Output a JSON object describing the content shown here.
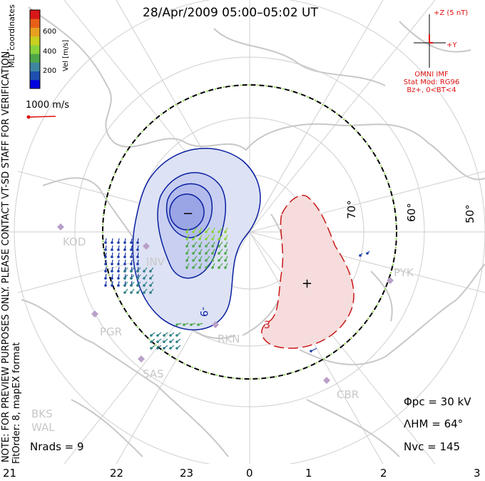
{
  "title": "28/Apr/2009 05:00–05:02 UT",
  "side_note": "NOTE: FOR PREVIEW PURPOSES ONLY. PLEASE CONTACT VT-SD STAFF FOR VERIFICATION.",
  "fit_order": "FitOrder: 8, mapEX format",
  "coords": "MLT coordinates",
  "colorbar": {
    "label": "Vel [m/s]",
    "ticks": [
      "600",
      "400",
      "200"
    ],
    "colors": [
      "#0000e0",
      "#1e4fb0",
      "#3f86a0",
      "#4fa64a",
      "#8ad23a",
      "#c8d020",
      "#e8a020",
      "#e86018",
      "#d81818"
    ]
  },
  "ref_vector": "1000 m/s",
  "imf": {
    "z_label": "+Z (5 nT)",
    "y_label": "+Y",
    "source": "OMNI IMF",
    "model": "Stat Mod: RG96",
    "condition": "Bz+, 0<BT<4"
  },
  "latitude_labels": [
    "70°",
    "60°",
    "50°"
  ],
  "stations": [
    "KOD",
    "INV",
    "PGR",
    "RKN",
    "SAS",
    "PYK",
    "CBR",
    "BKS",
    "WAL"
  ],
  "potential_markers": {
    "negative": "−",
    "positive": "+",
    "contour_label_neg": "-9",
    "contour_label_pos": "3"
  },
  "stats": {
    "phi_pc": "Φpc = 30 kV",
    "lambda_hm": "ΛHM = 64°",
    "n_vc": "Nvc = 145",
    "n_rads": "Nrads = 9"
  },
  "mlt_hours": [
    "21",
    "22",
    "23",
    "0",
    "1",
    "2",
    "3"
  ]
}
